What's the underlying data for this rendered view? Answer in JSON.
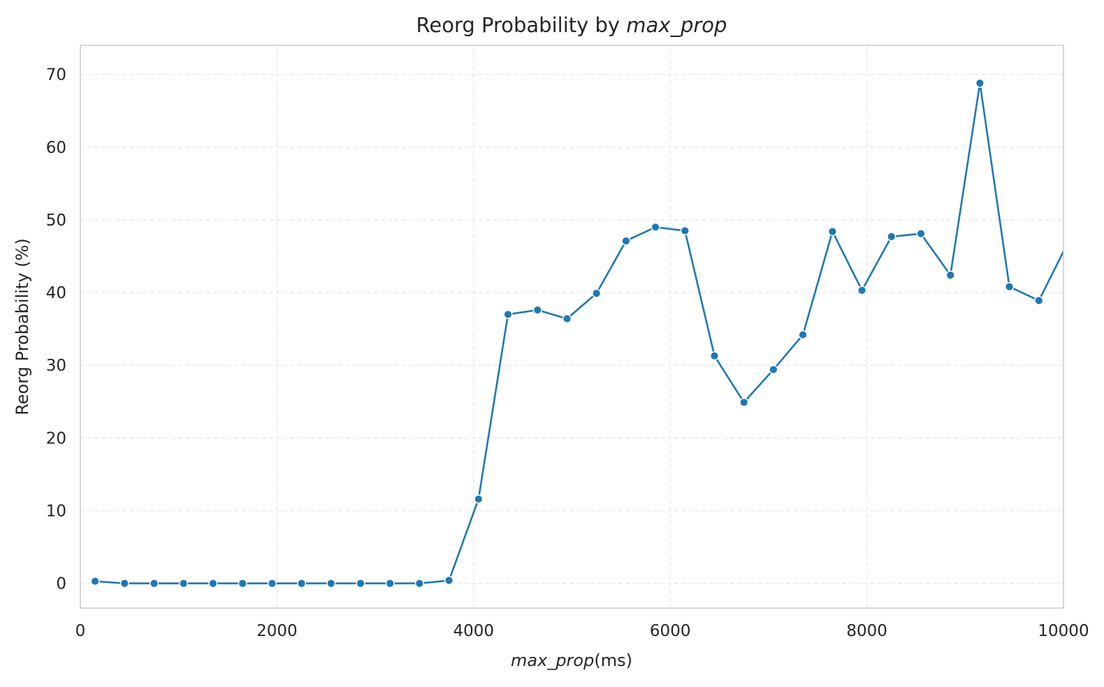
{
  "chart_data": {
    "type": "line",
    "title": "Reorg Probability by ",
    "title_italic": "max_prop",
    "xlabel_italic": "max_prop",
    "xlabel": "(ms)",
    "ylabel": "Reorg Probability (%)",
    "xlim": [
      0,
      10000
    ],
    "ylim": [
      -3.4,
      74
    ],
    "xticks": [
      0,
      2000,
      4000,
      6000,
      8000,
      10000
    ],
    "yticks": [
      0,
      10,
      20,
      30,
      40,
      50,
      60,
      70
    ],
    "grid": true,
    "series": [
      {
        "color": "#1f77b4",
        "x": [
          150,
          450,
          750,
          1050,
          1350,
          1650,
          1950,
          2250,
          2550,
          2850,
          3150,
          3450,
          3750,
          4050,
          4350,
          4650,
          4950,
          5250,
          5550,
          5850,
          6150,
          6450,
          6750,
          7050,
          7350,
          7650,
          7950,
          8250,
          8550,
          8850,
          9150,
          9450,
          9750,
          10050
        ],
        "y": [
          0.3,
          0.0,
          0.0,
          0.0,
          0.0,
          0.0,
          0.0,
          0.0,
          0.0,
          0.0,
          0.0,
          0.0,
          0.4,
          11.6,
          37.0,
          37.6,
          36.4,
          39.9,
          47.1,
          49.0,
          48.5,
          31.3,
          24.9,
          29.4,
          34.2,
          48.4,
          40.3,
          47.7,
          48.1,
          42.4,
          68.8,
          40.8,
          38.9,
          47.0
        ]
      }
    ]
  }
}
